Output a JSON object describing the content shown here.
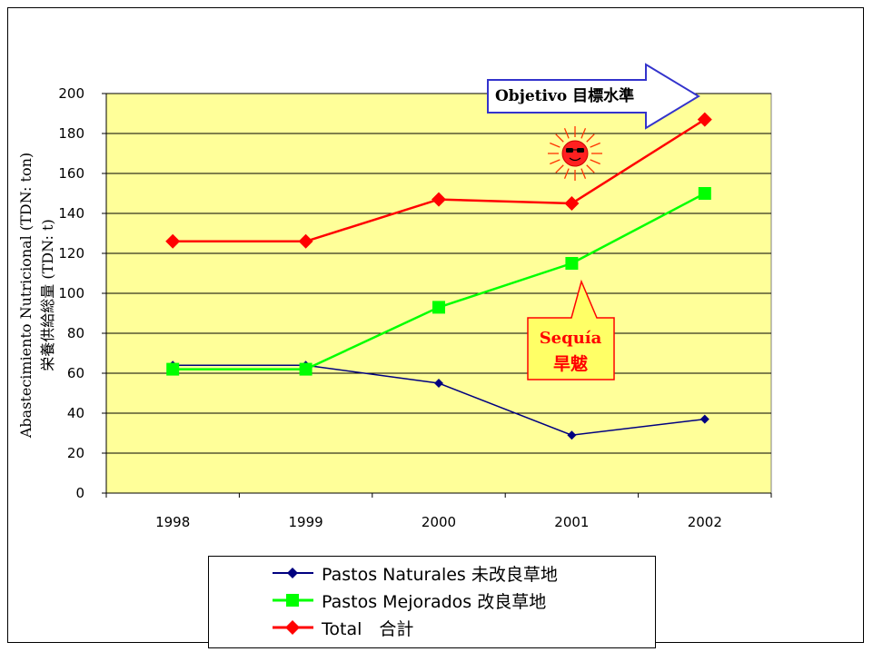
{
  "chart_data": {
    "type": "line",
    "categories": [
      "1998",
      "1999",
      "2000",
      "2001",
      "2002"
    ],
    "series": [
      {
        "name": "Pastos Naturales 未改良草地",
        "values": [
          64,
          64,
          55,
          29,
          37
        ],
        "color": "#000080",
        "marker": "diamond"
      },
      {
        "name": "Pastos Mejorados 改良草地",
        "values": [
          62,
          62,
          93,
          115,
          150
        ],
        "color": "#00ff00",
        "marker": "square"
      },
      {
        "name": "Total　合計",
        "values": [
          126,
          126,
          147,
          145,
          187
        ],
        "color": "#ff0000",
        "marker": "diamond"
      }
    ],
    "ylim": [
      0,
      200
    ],
    "yticks": [
      "0",
      "20",
      "40",
      "60",
      "80",
      "100",
      "120",
      "140",
      "160",
      "180",
      "200"
    ],
    "ylabel_line1": "Abastecimiento Nutricional (TDN: ton)",
    "ylabel_line2": "栄養供給総量 (TDN: t)",
    "grid": true,
    "plot_background": "#ffff99",
    "legend_position": "bottom",
    "annotations": {
      "target_arrow": "Objetivo 目標水準",
      "drought_label_line1": "Sequía",
      "drought_label_line2": "旱魃",
      "drought_year": "2001",
      "sun_icon": "sun-icon"
    }
  }
}
